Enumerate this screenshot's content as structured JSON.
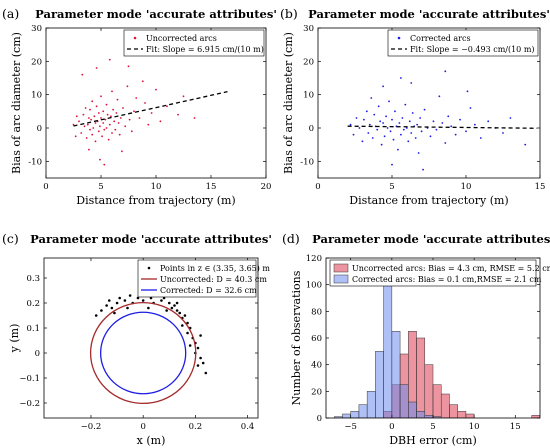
{
  "chart_data": [
    {
      "panel": "(a)",
      "type": "scatter",
      "title": "Parameter mode 'accurate attributes'",
      "xlabel": "Distance from trajectory (m)",
      "ylabel": "Bias of arc diameter (cm)",
      "xlim": [
        0,
        20
      ],
      "ylim": [
        -15,
        30
      ],
      "xticks": [
        0,
        5,
        10,
        15,
        20
      ],
      "yticks": [
        -10,
        0,
        10,
        20,
        30
      ],
      "grid": false,
      "legend_position": "top-right",
      "series": [
        {
          "name": "Uncorrected arcs",
          "kind": "points",
          "color": "#dc143c",
          "points": [
            [
              3.0,
              2.0
            ],
            [
              3.2,
              -1.5
            ],
            [
              3.4,
              4.0
            ],
            [
              3.5,
              0.5
            ],
            [
              3.6,
              6.0
            ],
            [
              3.7,
              -3.0
            ],
            [
              3.8,
              1.0
            ],
            [
              3.9,
              3.0
            ],
            [
              4.0,
              -0.5
            ],
            [
              4.0,
              5.5
            ],
            [
              4.1,
              2.5
            ],
            [
              4.2,
              8.0
            ],
            [
              4.2,
              -2.0
            ],
            [
              4.3,
              0.0
            ],
            [
              4.4,
              3.5
            ],
            [
              4.5,
              1.5
            ],
            [
              4.5,
              -4.0
            ],
            [
              4.6,
              6.5
            ],
            [
              4.7,
              2.0
            ],
            [
              4.8,
              -1.0
            ],
            [
              4.8,
              4.5
            ],
            [
              4.9,
              0.5
            ],
            [
              5.0,
              3.0
            ],
            [
              5.0,
              9.5
            ],
            [
              5.1,
              -2.5
            ],
            [
              5.2,
              1.5
            ],
            [
              5.2,
              5.0
            ],
            [
              5.3,
              -0.5
            ],
            [
              5.4,
              2.5
            ],
            [
              5.5,
              7.0
            ],
            [
              5.5,
              0.0
            ],
            [
              5.6,
              4.0
            ],
            [
              5.7,
              -3.5
            ],
            [
              5.8,
              1.0
            ],
            [
              5.9,
              3.5
            ],
            [
              6.0,
              11.0
            ],
            [
              6.0,
              -1.5
            ],
            [
              6.1,
              5.5
            ],
            [
              6.2,
              2.0
            ],
            [
              6.3,
              -0.5
            ],
            [
              6.4,
              4.5
            ],
            [
              6.5,
              8.5
            ],
            [
              6.6,
              1.5
            ],
            [
              6.7,
              -2.0
            ],
            [
              6.8,
              3.0
            ],
            [
              7.0,
              6.0
            ],
            [
              7.2,
              0.5
            ],
            [
              7.4,
              12.5
            ],
            [
              7.6,
              2.5
            ],
            [
              7.8,
              -1.0
            ],
            [
              8.0,
              5.0
            ],
            [
              8.2,
              9.0
            ],
            [
              8.5,
              3.0
            ],
            [
              8.8,
              14.0
            ],
            [
              9.0,
              7.5
            ],
            [
              9.3,
              1.0
            ],
            [
              9.6,
              4.5
            ],
            [
              10.0,
              11.5
            ],
            [
              10.4,
              2.0
            ],
            [
              11.0,
              6.5
            ],
            [
              2.5,
              1.0
            ],
            [
              2.7,
              -2.5
            ],
            [
              2.8,
              3.5
            ],
            [
              3.3,
              16.0
            ],
            [
              4.6,
              18.0
            ],
            [
              5.8,
              20.5
            ],
            [
              7.5,
              18.5
            ],
            [
              12.0,
              4.0
            ],
            [
              12.5,
              9.5
            ],
            [
              13.5,
              3.0
            ],
            [
              4.9,
              -9.5
            ],
            [
              5.3,
              -11.0
            ],
            [
              6.9,
              -7.0
            ],
            [
              3.9,
              -6.5
            ]
          ]
        },
        {
          "name": "Fit: Slope = 6.915 cm/(10 m)",
          "kind": "fit",
          "color": "#000000",
          "x": [
            2.5,
            16.5
          ],
          "y": [
            0.6,
            10.9
          ]
        }
      ]
    },
    {
      "panel": "(b)",
      "type": "scatter",
      "title": "Parameter mode 'accurate attributes'",
      "xlabel": "Distance from trajectory (m)",
      "ylabel": "Bias of arc diameter (cm)",
      "xlim": [
        0,
        15
      ],
      "ylim": [
        -15,
        30
      ],
      "xticks": [
        0,
        5,
        10,
        15
      ],
      "yticks": [
        -10,
        0,
        10,
        20,
        30
      ],
      "grid": false,
      "legend_position": "top-right",
      "series": [
        {
          "name": "Corrected arcs",
          "kind": "points",
          "color": "#1e1ee6",
          "points": [
            [
              2.2,
              1.0
            ],
            [
              2.4,
              -2.0
            ],
            [
              2.6,
              3.0
            ],
            [
              2.8,
              0.0
            ],
            [
              3.0,
              -4.0
            ],
            [
              3.1,
              2.5
            ],
            [
              3.3,
              5.0
            ],
            [
              3.4,
              -1.5
            ],
            [
              3.5,
              1.0
            ],
            [
              3.7,
              -3.0
            ],
            [
              3.8,
              4.0
            ],
            [
              3.9,
              0.5
            ],
            [
              4.0,
              -0.5
            ],
            [
              4.1,
              6.5
            ],
            [
              4.2,
              2.0
            ],
            [
              4.3,
              -5.0
            ],
            [
              4.4,
              1.5
            ],
            [
              4.5,
              -2.5
            ],
            [
              4.6,
              3.5
            ],
            [
              4.7,
              0.0
            ],
            [
              4.8,
              8.0
            ],
            [
              4.9,
              -1.0
            ],
            [
              5.0,
              2.5
            ],
            [
              5.1,
              -3.5
            ],
            [
              5.2,
              5.0
            ],
            [
              5.3,
              0.5
            ],
            [
              5.4,
              -6.5
            ],
            [
              5.5,
              1.5
            ],
            [
              5.6,
              -2.0
            ],
            [
              5.7,
              3.0
            ],
            [
              5.8,
              -0.5
            ],
            [
              5.9,
              7.0
            ],
            [
              6.0,
              0.0
            ],
            [
              6.1,
              -4.0
            ],
            [
              6.2,
              2.0
            ],
            [
              6.3,
              -1.5
            ],
            [
              6.4,
              4.5
            ],
            [
              6.5,
              0.5
            ],
            [
              6.6,
              -3.0
            ],
            [
              6.7,
              1.0
            ],
            [
              6.8,
              -7.5
            ],
            [
              6.9,
              3.0
            ],
            [
              7.0,
              -1.0
            ],
            [
              7.2,
              5.5
            ],
            [
              7.4,
              0.0
            ],
            [
              7.6,
              -2.5
            ],
            [
              7.8,
              2.0
            ],
            [
              8.0,
              -0.5
            ],
            [
              8.2,
              9.5
            ],
            [
              8.4,
              1.5
            ],
            [
              8.6,
              -4.5
            ],
            [
              8.8,
              3.5
            ],
            [
              9.0,
              0.5
            ],
            [
              9.3,
              -2.0
            ],
            [
              9.6,
              2.5
            ],
            [
              10.0,
              -1.0
            ],
            [
              10.3,
              6.0
            ],
            [
              10.6,
              1.0
            ],
            [
              11.0,
              -3.0
            ],
            [
              11.5,
              2.0
            ],
            [
              12.0,
              0.0
            ],
            [
              12.5,
              -1.5
            ],
            [
              13.0,
              3.0
            ],
            [
              14.0,
              -5.0
            ],
            [
              4.4,
              12.5
            ],
            [
              5.6,
              15.0
            ],
            [
              6.3,
              13.5
            ],
            [
              8.6,
              17.0
            ],
            [
              5.0,
              -11.0
            ],
            [
              7.1,
              -12.5
            ],
            [
              3.6,
              9.0
            ],
            [
              10.1,
              11.0
            ]
          ]
        },
        {
          "name": "Fit: Slope = −0.493 cm/(10 m)",
          "kind": "fit",
          "color": "#000000",
          "x": [
            2.0,
            14.8
          ],
          "y": [
            0.55,
            -0.08
          ]
        }
      ]
    },
    {
      "panel": "(c)",
      "type": "scatter",
      "title": "Parameter mode 'accurate attributes'",
      "xlabel": "x (m)",
      "ylabel": "y (m)",
      "xlim": [
        -0.38,
        0.44
      ],
      "ylim": [
        -0.26,
        0.38
      ],
      "xticks": [
        -0.2,
        0,
        0.2,
        0.4
      ],
      "xtick_labels": [
        "−0.2",
        "0",
        "0.2",
        "0.4"
      ],
      "yticks": [
        -0.2,
        -0.1,
        0,
        0.1,
        0.2,
        0.3
      ],
      "ytick_labels": [
        "−0.2",
        "−0.1",
        "0",
        "0.1",
        "0.2",
        "0.3"
      ],
      "grid": false,
      "legend_position": "top-right",
      "series": [
        {
          "name": "Points in z ∈ (3.35, 3.65) m",
          "kind": "points",
          "color": "#000000",
          "points": [
            [
              -0.18,
              0.15
            ],
            [
              -0.16,
              0.17
            ],
            [
              -0.14,
              0.19
            ],
            [
              -0.12,
              0.18
            ],
            [
              -0.1,
              0.2
            ],
            [
              -0.09,
              0.22
            ],
            [
              -0.07,
              0.21
            ],
            [
              -0.05,
              0.23
            ],
            [
              -0.04,
              0.2
            ],
            [
              -0.02,
              0.22
            ],
            [
              0.0,
              0.21
            ],
            [
              0.01,
              0.24
            ],
            [
              0.03,
              0.22
            ],
            [
              0.04,
              0.2
            ],
            [
              0.06,
              0.23
            ],
            [
              0.07,
              0.21
            ],
            [
              0.08,
              0.22
            ],
            [
              0.1,
              0.2
            ],
            [
              0.11,
              0.18
            ],
            [
              0.12,
              0.19
            ],
            [
              0.13,
              0.17
            ],
            [
              0.14,
              0.16
            ],
            [
              0.15,
              0.14
            ],
            [
              0.16,
              0.15
            ],
            [
              0.17,
              0.12
            ],
            [
              0.18,
              0.1
            ],
            [
              0.17,
              0.08
            ],
            [
              0.19,
              0.06
            ],
            [
              0.2,
              0.04
            ],
            [
              0.21,
              0.02
            ],
            [
              0.2,
              0.0
            ],
            [
              0.22,
              -0.02
            ],
            [
              0.23,
              -0.04
            ],
            [
              0.21,
              -0.05
            ],
            [
              0.24,
              -0.08
            ],
            [
              -0.13,
              0.21
            ],
            [
              0.02,
              0.18
            ],
            [
              0.09,
              0.17
            ],
            [
              0.15,
              0.11
            ],
            [
              0.18,
              0.03
            ],
            [
              -0.06,
              0.18
            ],
            [
              0.05,
              0.25
            ],
            [
              0.22,
              0.07
            ],
            [
              0.13,
              0.2
            ],
            [
              -0.11,
              0.16
            ]
          ]
        },
        {
          "name": "Uncorrected: D = 40.3 cm",
          "kind": "circle",
          "color": "#a52a2a",
          "center": [
            0,
            0
          ],
          "diameter_cm": 40.3
        },
        {
          "name": "Corrected: D = 32.6 cm",
          "kind": "circle",
          "color": "#1e1ee6",
          "center": [
            0,
            0
          ],
          "diameter_cm": 32.6
        }
      ]
    },
    {
      "panel": "(d)",
      "type": "bar",
      "title": "Parameter mode 'accurate attributes'",
      "xlabel": "DBH error (cm)",
      "ylabel": "Number of observations",
      "xlim": [
        -8,
        18
      ],
      "ylim": [
        0,
        120
      ],
      "xticks": [
        -5,
        0,
        5,
        10,
        15
      ],
      "xtick_labels": [
        "−5",
        "0",
        "5",
        "10",
        "15"
      ],
      "yticks": [
        0,
        20,
        40,
        60,
        80,
        100,
        120
      ],
      "grid": false,
      "legend_position": "top",
      "bin_width": 1,
      "bin_edges_start": -7,
      "series": [
        {
          "name": "Uncorrected arcs: Bias = 4.3 cm, RMSE = 5.2 cm",
          "color": "#dc3c50",
          "values": [
            0,
            0,
            0,
            0,
            0,
            0,
            5,
            25,
            48,
            65,
            60,
            40,
            25,
            18,
            10,
            5,
            3,
            0,
            0,
            0,
            0,
            0,
            0,
            0,
            2
          ]
        },
        {
          "name": "Corrected arcs: Bias = 0.1 cm,RMSE = 2.1 cm",
          "color": "#6e8cf0",
          "values": [
            1,
            3,
            5,
            10,
            20,
            50,
            100,
            65,
            25,
            12,
            5,
            2,
            1,
            0,
            0,
            0,
            0,
            0,
            0,
            0,
            0,
            0,
            0,
            0,
            0
          ]
        }
      ]
    }
  ]
}
